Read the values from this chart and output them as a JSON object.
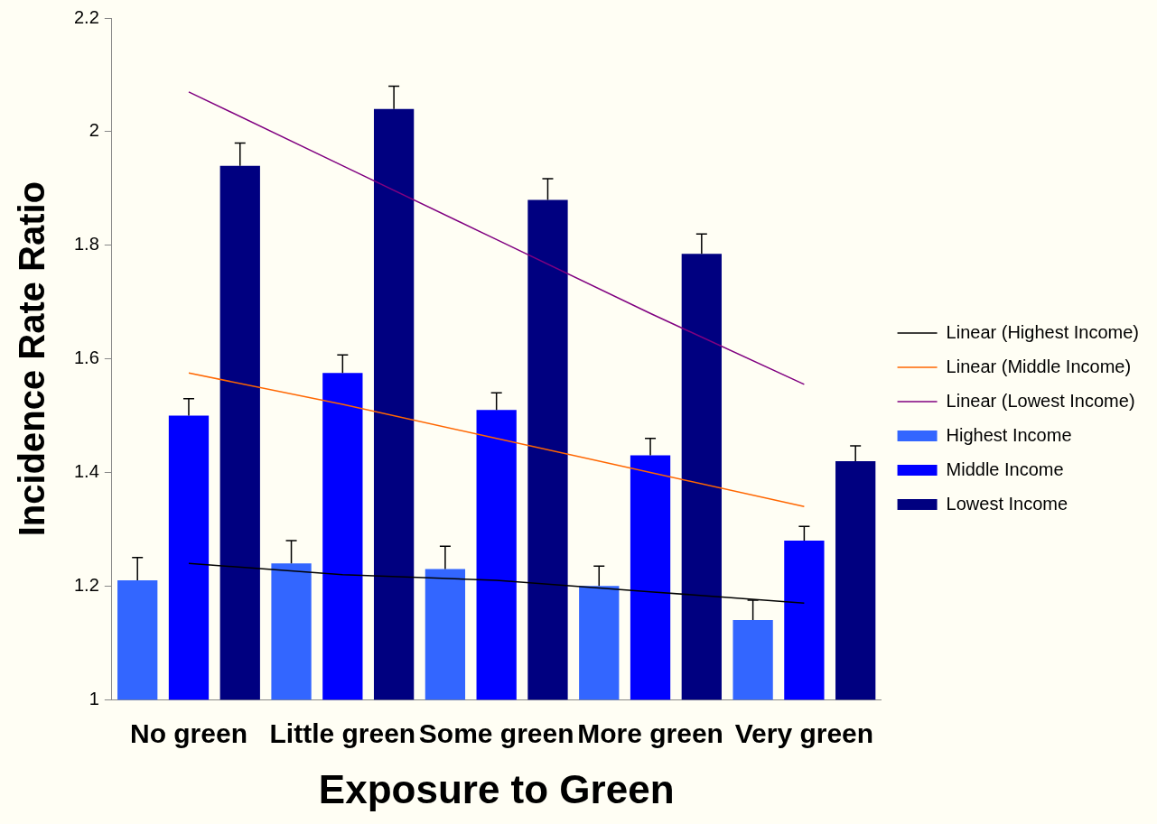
{
  "chart_data": {
    "type": "bar",
    "xlabel": "Exposure to Green",
    "ylabel": "Incidence Rate Ratio",
    "categories": [
      "No green",
      "Little green",
      "Some green",
      "More green",
      "Very green"
    ],
    "series": [
      {
        "name": "Highest Income",
        "color": "#3366ff",
        "values": [
          1.21,
          1.24,
          1.23,
          1.2,
          1.14
        ],
        "errors": [
          [
            1.21,
            1.25
          ],
          [
            1.24,
            1.28
          ],
          [
            1.23,
            1.27
          ],
          [
            1.2,
            1.235
          ],
          [
            1.14,
            1.175
          ]
        ]
      },
      {
        "name": "Middle Income",
        "color": "#0000ff",
        "values": [
          1.5,
          1.575,
          1.51,
          1.43,
          1.28
        ],
        "errors": [
          [
            1.5,
            1.53
          ],
          [
            1.575,
            1.607
          ],
          [
            1.51,
            1.54
          ],
          [
            1.43,
            1.46
          ],
          [
            1.28,
            1.305
          ]
        ]
      },
      {
        "name": "Lowest Income",
        "color": "#000080",
        "values": [
          1.94,
          2.04,
          1.88,
          1.785,
          1.42
        ],
        "errors": [
          [
            1.94,
            1.98
          ],
          [
            2.04,
            2.08
          ],
          [
            1.88,
            1.917
          ],
          [
            1.785,
            1.82
          ],
          [
            1.42,
            1.447
          ]
        ]
      },
      {
        "name": "Linear (Highest Income)",
        "type": "line",
        "color": "#000000",
        "values": [
          1.24,
          1.22,
          1.21,
          1.19,
          1.17
        ]
      },
      {
        "name": "Linear (Middle Income)",
        "type": "line",
        "color": "#ff6600",
        "values": [
          1.575,
          1.52,
          1.46,
          1.4,
          1.34
        ]
      },
      {
        "name": "Linear (Lowest Income)",
        "type": "line",
        "color": "#800080",
        "values": [
          2.07,
          1.94,
          1.81,
          1.68,
          1.555
        ]
      }
    ],
    "ylim": [
      1,
      2.2
    ],
    "yticks": [
      1,
      1.2,
      1.4,
      1.6,
      1.8,
      2,
      2.2
    ],
    "grid": false,
    "legend": "right"
  }
}
